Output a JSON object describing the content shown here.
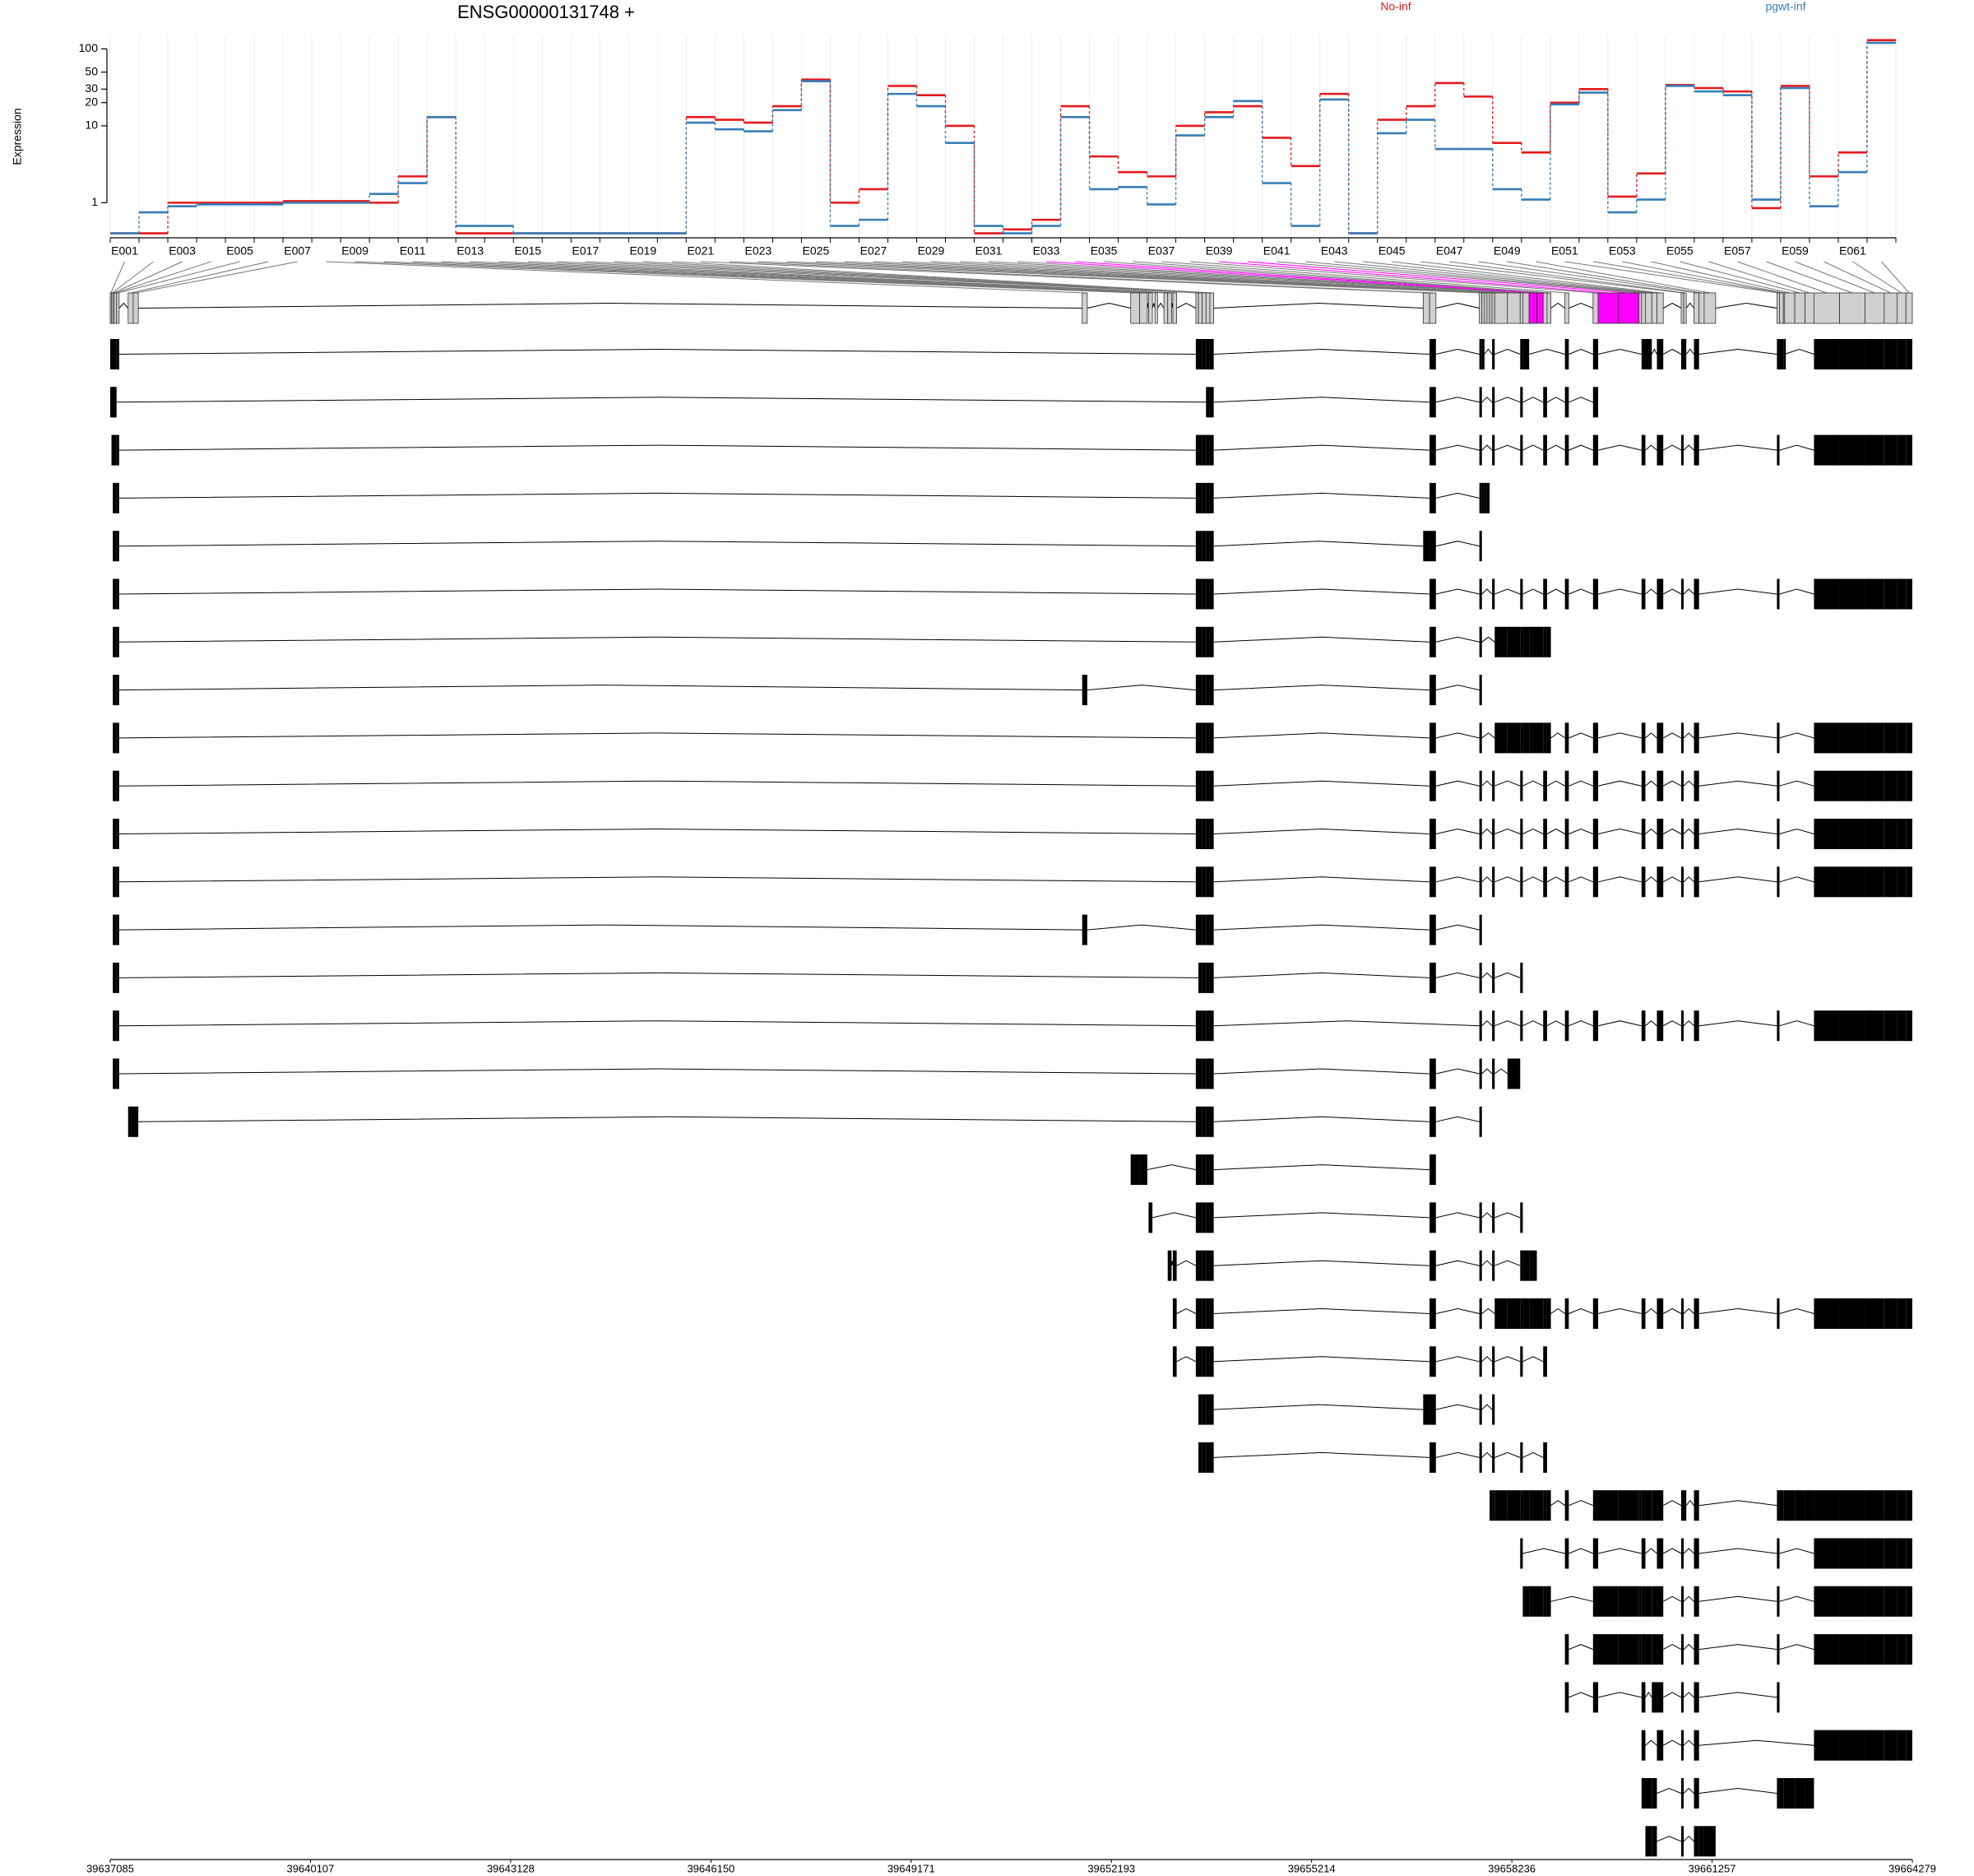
{
  "chart_data": {
    "type": "exon-usage",
    "title": "ENSG00000131748 +",
    "y_label": "Expression",
    "log_scale": true,
    "grid": true,
    "ylim": [
      0.35,
      150
    ],
    "yticks": [
      1,
      10,
      20,
      30,
      50,
      100
    ],
    "categories": [
      "E001",
      null,
      "E003",
      null,
      "E005",
      null,
      "E007",
      null,
      "E009",
      null,
      "E011",
      null,
      "E013",
      null,
      "E015",
      null,
      "E017",
      null,
      "E019",
      null,
      "E021",
      null,
      "E023",
      null,
      "E025",
      null,
      "E027",
      null,
      "E029",
      null,
      "E031",
      null,
      "E033",
      null,
      "E035",
      null,
      "E037",
      null,
      "E039",
      null,
      "E041",
      null,
      "E043",
      null,
      "E045",
      null,
      "E047",
      null,
      "E049",
      null,
      "E051",
      null,
      "E053",
      null,
      "E055",
      null,
      "E057",
      null,
      "E059",
      null,
      "E061",
      null
    ],
    "series": [
      {
        "name": "No-inf",
        "color": "#e41a1c",
        "values": [
          0.4,
          0.4,
          1.0,
          1.0,
          1.0,
          1.0,
          1.05,
          1.05,
          1.05,
          1.0,
          2.2,
          13,
          0.4,
          0.4,
          0.4,
          0.4,
          0.4,
          0.4,
          0.4,
          0.4,
          13,
          12,
          11,
          18,
          40,
          1.0,
          1.5,
          33,
          25,
          10,
          0.4,
          0.45,
          0.6,
          18,
          4,
          2.5,
          2.2,
          10,
          15,
          18,
          7,
          3,
          26,
          0.4,
          12,
          18,
          36,
          24,
          6,
          4.5,
          20,
          30,
          1.2,
          2.4,
          34,
          31,
          28,
          0.85,
          33,
          2.2,
          4.5,
          130
        ]
      },
      {
        "name": "pgwt-inf",
        "color": "#377eb8",
        "values": [
          0.4,
          0.75,
          0.9,
          0.95,
          0.95,
          0.95,
          1.0,
          1.0,
          1.0,
          1.3,
          1.8,
          13,
          0.5,
          0.5,
          0.4,
          0.4,
          0.4,
          0.4,
          0.4,
          0.4,
          11,
          9,
          8.5,
          16,
          38,
          0.5,
          0.6,
          26,
          18,
          6,
          0.5,
          0.4,
          0.5,
          13,
          1.5,
          1.6,
          0.95,
          7.5,
          13,
          21,
          1.8,
          0.5,
          22,
          0.4,
          8,
          12,
          5,
          5,
          1.5,
          1.1,
          19,
          27,
          0.75,
          1.1,
          33,
          28,
          25,
          1.1,
          31,
          0.9,
          2.5,
          120
        ]
      }
    ],
    "significant_color": "#ff00ff",
    "significant_exons": [
      33,
      34,
      39,
      40
    ],
    "xlim": [
      39637085,
      39664279
    ],
    "xticks": [
      39637085,
      39640107,
      39643128,
      39646150,
      39649171,
      39652193,
      39655214,
      39658236,
      39661257,
      39664279
    ],
    "exon_coords": [
      [
        39637085,
        39637104
      ],
      [
        39637104,
        39637124
      ],
      [
        39637124,
        39637143
      ],
      [
        39637143,
        39637181
      ],
      [
        39637181,
        39637220
      ],
      [
        39637355,
        39637432
      ],
      [
        39637432,
        39637509
      ],
      [
        39651752,
        39651829
      ],
      [
        39652484,
        39652619
      ],
      [
        39652619,
        39652735
      ],
      [
        39652754,
        39652812
      ],
      [
        39652850,
        39652889
      ],
      [
        39652985,
        39653043
      ],
      [
        39653043,
        39653101
      ],
      [
        39653120,
        39653178
      ],
      [
        39653467,
        39653506
      ],
      [
        39653506,
        39653563
      ],
      [
        39653563,
        39653621
      ],
      [
        39653621,
        39653679
      ],
      [
        39653679,
        39653737
      ],
      [
        39656898,
        39656994
      ],
      [
        39656994,
        39657090
      ],
      [
        39657746,
        39657784
      ],
      [
        39657784,
        39657823
      ],
      [
        39657823,
        39657861
      ],
      [
        39657861,
        39657900
      ],
      [
        39657900,
        39657938
      ],
      [
        39657938,
        39657977
      ],
      [
        39657977,
        39658170
      ],
      [
        39658170,
        39658362
      ],
      [
        39658362,
        39658401
      ],
      [
        39658401,
        39658497
      ],
      [
        39658497,
        39658613
      ],
      [
        39658613,
        39658709
      ],
      [
        39658709,
        39658767
      ],
      [
        39658767,
        39658825
      ],
      [
        39659037,
        39659095
      ],
      [
        39659461,
        39659538
      ],
      [
        39659538,
        39659846
      ],
      [
        39659846,
        39660155
      ],
      [
        39660155,
        39660193
      ],
      [
        39660193,
        39660251
      ],
      [
        39660251,
        39660348
      ],
      [
        39660348,
        39660425
      ],
      [
        39660425,
        39660521
      ],
      [
        39660791,
        39660829
      ],
      [
        39660829,
        39660868
      ],
      [
        39660984,
        39661061
      ],
      [
        39661061,
        39661138
      ],
      [
        39661138,
        39661311
      ],
      [
        39662236,
        39662275
      ],
      [
        39662275,
        39662333
      ],
      [
        39662333,
        39662352
      ],
      [
        39662352,
        39662506
      ],
      [
        39662506,
        39662660
      ],
      [
        39662660,
        39662795
      ],
      [
        39662795,
        39663181
      ],
      [
        39663181,
        39663566
      ],
      [
        39663566,
        39663855
      ],
      [
        39663855,
        39664048
      ],
      [
        39664048,
        39664183
      ],
      [
        39664183,
        39664279
      ]
    ],
    "transcripts": [
      [
        1,
        2,
        3,
        4,
        5,
        16,
        17,
        18,
        19,
        20,
        22,
        23,
        24,
        28,
        31,
        32,
        37,
        38,
        42,
        43,
        45,
        46,
        47,
        48,
        51,
        52,
        53,
        57,
        58,
        59,
        60,
        61,
        62
      ],
      [
        1,
        2,
        3,
        4,
        19,
        20,
        22,
        23,
        28,
        31,
        35,
        37,
        38
      ],
      [
        2,
        3,
        4,
        5,
        16,
        17,
        18,
        19,
        20,
        22,
        23,
        28,
        31,
        35,
        37,
        38,
        42,
        45,
        46,
        48,
        51,
        57,
        58,
        59,
        60,
        61,
        62
      ],
      [
        3,
        4,
        5,
        16,
        17,
        18,
        19,
        20,
        22,
        23,
        24,
        25,
        26
      ],
      [
        3,
        4,
        5,
        16,
        17,
        18,
        19,
        20,
        21,
        22,
        23
      ],
      [
        3,
        4,
        5,
        16,
        17,
        18,
        19,
        20,
        22,
        23,
        28,
        31,
        35,
        37,
        38,
        42,
        45,
        46,
        48,
        51,
        57,
        58,
        59,
        60,
        61,
        62
      ],
      [
        3,
        4,
        5,
        16,
        17,
        18,
        19,
        20,
        22,
        23,
        29,
        30,
        31,
        32,
        33,
        34,
        35,
        36
      ],
      [
        3,
        4,
        5,
        8,
        16,
        17,
        18,
        19,
        20,
        22,
        23
      ],
      [
        3,
        4,
        5,
        16,
        17,
        18,
        19,
        20,
        22,
        23,
        29,
        30,
        31,
        32,
        33,
        34,
        35,
        36,
        37,
        38,
        42,
        45,
        46,
        48,
        51,
        57,
        58,
        59,
        60,
        61,
        62
      ],
      [
        3,
        4,
        5,
        16,
        17,
        18,
        19,
        20,
        22,
        23,
        28,
        31,
        35,
        37,
        38,
        42,
        45,
        46,
        48,
        51,
        57,
        58,
        59,
        60,
        61,
        62
      ],
      [
        3,
        4,
        5,
        16,
        17,
        18,
        19,
        20,
        22,
        23,
        28,
        31,
        35,
        37,
        38,
        42,
        45,
        46,
        48,
        51,
        57,
        58,
        59,
        60,
        61,
        62
      ],
      [
        3,
        4,
        5,
        16,
        17,
        18,
        19,
        20,
        22,
        23,
        28,
        31,
        35,
        37,
        38,
        42,
        45,
        46,
        48,
        51,
        57,
        58,
        59,
        60,
        61,
        62
      ],
      [
        3,
        4,
        5,
        8,
        16,
        17,
        18,
        19,
        20,
        22,
        23
      ],
      [
        3,
        4,
        5,
        17,
        18,
        19,
        20,
        22,
        23,
        28,
        31
      ],
      [
        3,
        4,
        5,
        16,
        17,
        18,
        19,
        20,
        23,
        28,
        31,
        35,
        37,
        38,
        42,
        45,
        46,
        48,
        51,
        57,
        58,
        59,
        60,
        61,
        62
      ],
      [
        3,
        4,
        5,
        16,
        17,
        18,
        19,
        20,
        22,
        23,
        28,
        30
      ],
      [
        6,
        7,
        16,
        17,
        18,
        19,
        20,
        22,
        23
      ],
      [
        9,
        10,
        16,
        17,
        18,
        19,
        20,
        22
      ],
      [
        11,
        16,
        17,
        18,
        19,
        20,
        22,
        23,
        28,
        31
      ],
      [
        14,
        15,
        16,
        17,
        18,
        19,
        20,
        22,
        23,
        28,
        31,
        32,
        33
      ],
      [
        15,
        16,
        17,
        18,
        19,
        20,
        22,
        23,
        29,
        30,
        31,
        32,
        33,
        34,
        35,
        36,
        37,
        38,
        42,
        45,
        46,
        48,
        51,
        57,
        58,
        59,
        60,
        61,
        62
      ],
      [
        15,
        16,
        17,
        18,
        19,
        20,
        22,
        23,
        28,
        31,
        35
      ],
      [
        17,
        18,
        19,
        20,
        21,
        22,
        23,
        28
      ],
      [
        17,
        18,
        19,
        20,
        22,
        23,
        28,
        31,
        35
      ],
      [
        27,
        28,
        29,
        30,
        31,
        32,
        33,
        34,
        35,
        36,
        37,
        38,
        39,
        40,
        41,
        42,
        43,
        44,
        45,
        46,
        47,
        48,
        51,
        52,
        53,
        54,
        55,
        56,
        57,
        58,
        59,
        60,
        61,
        62
      ],
      [
        31,
        37,
        38,
        42,
        45,
        46,
        48,
        51,
        57,
        58,
        59,
        60,
        61,
        62
      ],
      [
        32,
        33,
        34,
        35,
        36,
        38,
        39,
        40,
        41,
        42,
        43,
        44,
        45,
        46,
        48,
        51,
        57,
        58,
        59,
        60,
        61,
        62
      ],
      [
        37,
        38,
        39,
        40,
        41,
        42,
        43,
        44,
        45,
        46,
        48,
        51,
        57,
        58,
        59,
        60,
        61,
        62
      ],
      [
        37,
        38,
        42,
        44,
        45,
        46,
        48,
        51
      ],
      [
        42,
        45,
        46,
        48,
        57,
        58,
        59,
        60,
        61,
        62
      ],
      [
        42,
        43,
        44,
        46,
        48,
        51,
        52,
        53,
        54,
        55,
        56
      ],
      [
        43,
        44,
        46,
        48,
        49,
        50
      ]
    ]
  }
}
